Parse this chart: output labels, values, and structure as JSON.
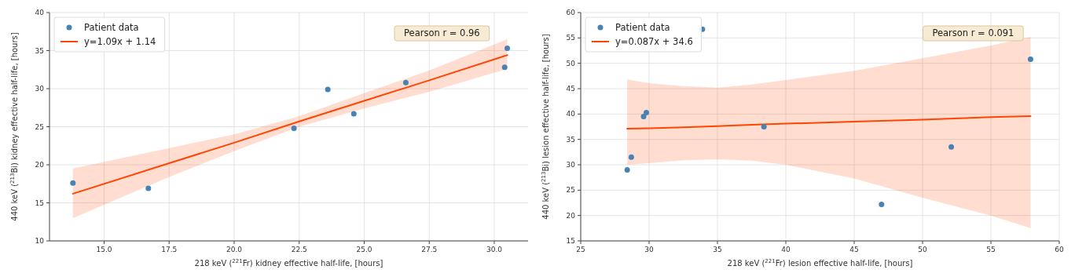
{
  "chart_data": [
    {
      "type": "scatter",
      "xlabel": "218 keV ($^{221}$Fr) kidney effective half-life, [hours]",
      "ylabel": "440 keV ($^{213}$Bi) kidney effective half-life, [hours]",
      "xlim": [
        12.9,
        31.3
      ],
      "ylim": [
        10,
        40
      ],
      "xticks": [
        {
          "value": 15,
          "label": "15.0"
        },
        {
          "value": 17.5,
          "label": "17.5"
        },
        {
          "value": 20,
          "label": "20.0"
        },
        {
          "value": 22.5,
          "label": "22.5"
        },
        {
          "value": 25,
          "label": "25.0"
        },
        {
          "value": 27.5,
          "label": "27.5"
        },
        {
          "value": 30,
          "label": "30.0"
        }
      ],
      "yticks": [
        10,
        15,
        20,
        25,
        30,
        35,
        40
      ],
      "grid": true,
      "legend": "top left",
      "annotations": [
        "Pearson r = 0.96"
      ],
      "series": [
        {
          "name": "Patient data",
          "marker": "circle",
          "color": "#4682b4",
          "x": [
            13.8,
            16.7,
            22.3,
            23.6,
            24.6,
            26.6,
            30.4,
            30.5
          ],
          "values": [
            17.6,
            16.9,
            24.8,
            29.9,
            26.7,
            30.8,
            32.8,
            35.3
          ]
        },
        {
          "name": "y=1.09x + 1.14",
          "type": "line",
          "color": "#ff4500",
          "x": [
            13.8,
            17.5,
            20,
            22.5,
            25,
            27.5,
            30.5
          ],
          "values": [
            16.2,
            20.2,
            22.9,
            25.7,
            28.4,
            31.1,
            34.4
          ],
          "lower": [
            13.0,
            18.4,
            21.8,
            25.0,
            27.4,
            29.6,
            32.6
          ],
          "upper": [
            19.5,
            22.2,
            24.0,
            26.4,
            29.4,
            32.4,
            36.5
          ]
        }
      ]
    },
    {
      "type": "scatter",
      "xlabel": "218 keV ($^{221}$Fr) lesion effective half-life, [hours]",
      "ylabel": "440 keV ($^{213}$Bi) lesion effective half-life, [hours]",
      "xlim": [
        25,
        60
      ],
      "ylim": [
        15,
        60
      ],
      "xticks": [
        25,
        30,
        35,
        40,
        45,
        50,
        55,
        60
      ],
      "yticks": [
        15,
        20,
        25,
        30,
        35,
        40,
        45,
        50,
        55,
        60
      ],
      "grid": true,
      "legend": "top left",
      "annotations": [
        "Pearson r = 0.091"
      ],
      "series": [
        {
          "name": "Patient data",
          "marker": "circle",
          "color": "#4682b4",
          "x": [
            28.4,
            28.7,
            29.6,
            29.8,
            33.9,
            38.4,
            47.0,
            52.1,
            57.9
          ],
          "values": [
            29.0,
            31.5,
            39.5,
            40.3,
            56.7,
            37.5,
            22.2,
            33.5,
            50.8
          ]
        },
        {
          "name": "y=0.087x + 34.6",
          "type": "line",
          "color": "#ff4500",
          "x": [
            28.4,
            30,
            32.5,
            35,
            37.5,
            40,
            45,
            50,
            55,
            57.9
          ],
          "values": [
            37.1,
            37.2,
            37.4,
            37.6,
            37.9,
            38.1,
            38.5,
            38.9,
            39.4,
            39.6
          ],
          "lower": [
            30.0,
            30.3,
            30.9,
            31.1,
            30.8,
            30.0,
            27.3,
            23.5,
            20.0,
            17.5
          ],
          "upper": [
            46.8,
            46.1,
            45.5,
            45.2,
            45.8,
            46.7,
            48.5,
            51.0,
            53.5,
            55.2
          ]
        }
      ]
    }
  ]
}
